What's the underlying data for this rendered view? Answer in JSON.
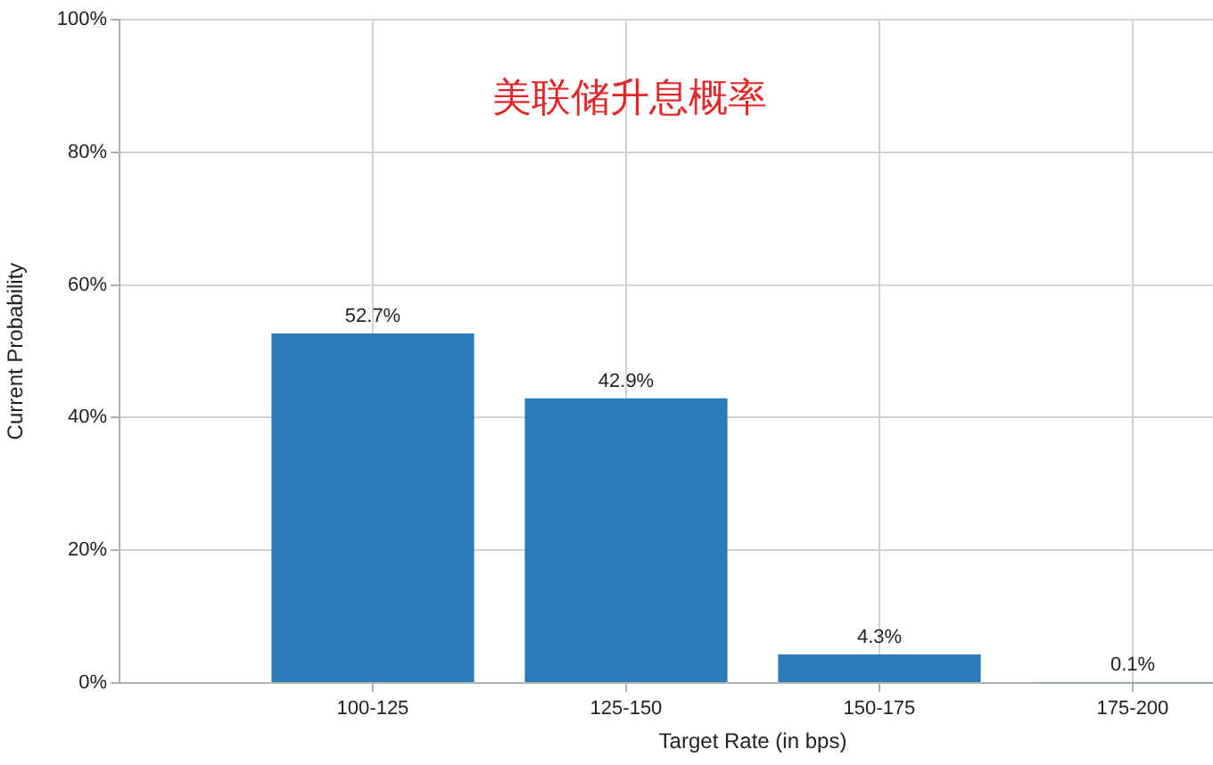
{
  "chart_data": {
    "type": "bar",
    "title": "美联储升息概率",
    "xlabel": "Target Rate (in bps)",
    "ylabel": "Current Probability",
    "categories": [
      "100-125",
      "125-150",
      "150-175",
      "175-200"
    ],
    "values": [
      52.7,
      42.9,
      4.3,
      0.1
    ],
    "value_labels": [
      "52.7%",
      "42.9%",
      "4.3%",
      "0.1%"
    ],
    "color": "#2b7bba",
    "ylim": [
      0,
      100
    ],
    "yticks": [
      {
        "value": 0,
        "label": "0%"
      },
      {
        "value": 20,
        "label": "20%"
      },
      {
        "value": 40,
        "label": "40%"
      },
      {
        "value": 60,
        "label": "60%"
      },
      {
        "value": 80,
        "label": "80%"
      },
      {
        "value": 100,
        "label": "100%"
      }
    ],
    "grid": true
  }
}
